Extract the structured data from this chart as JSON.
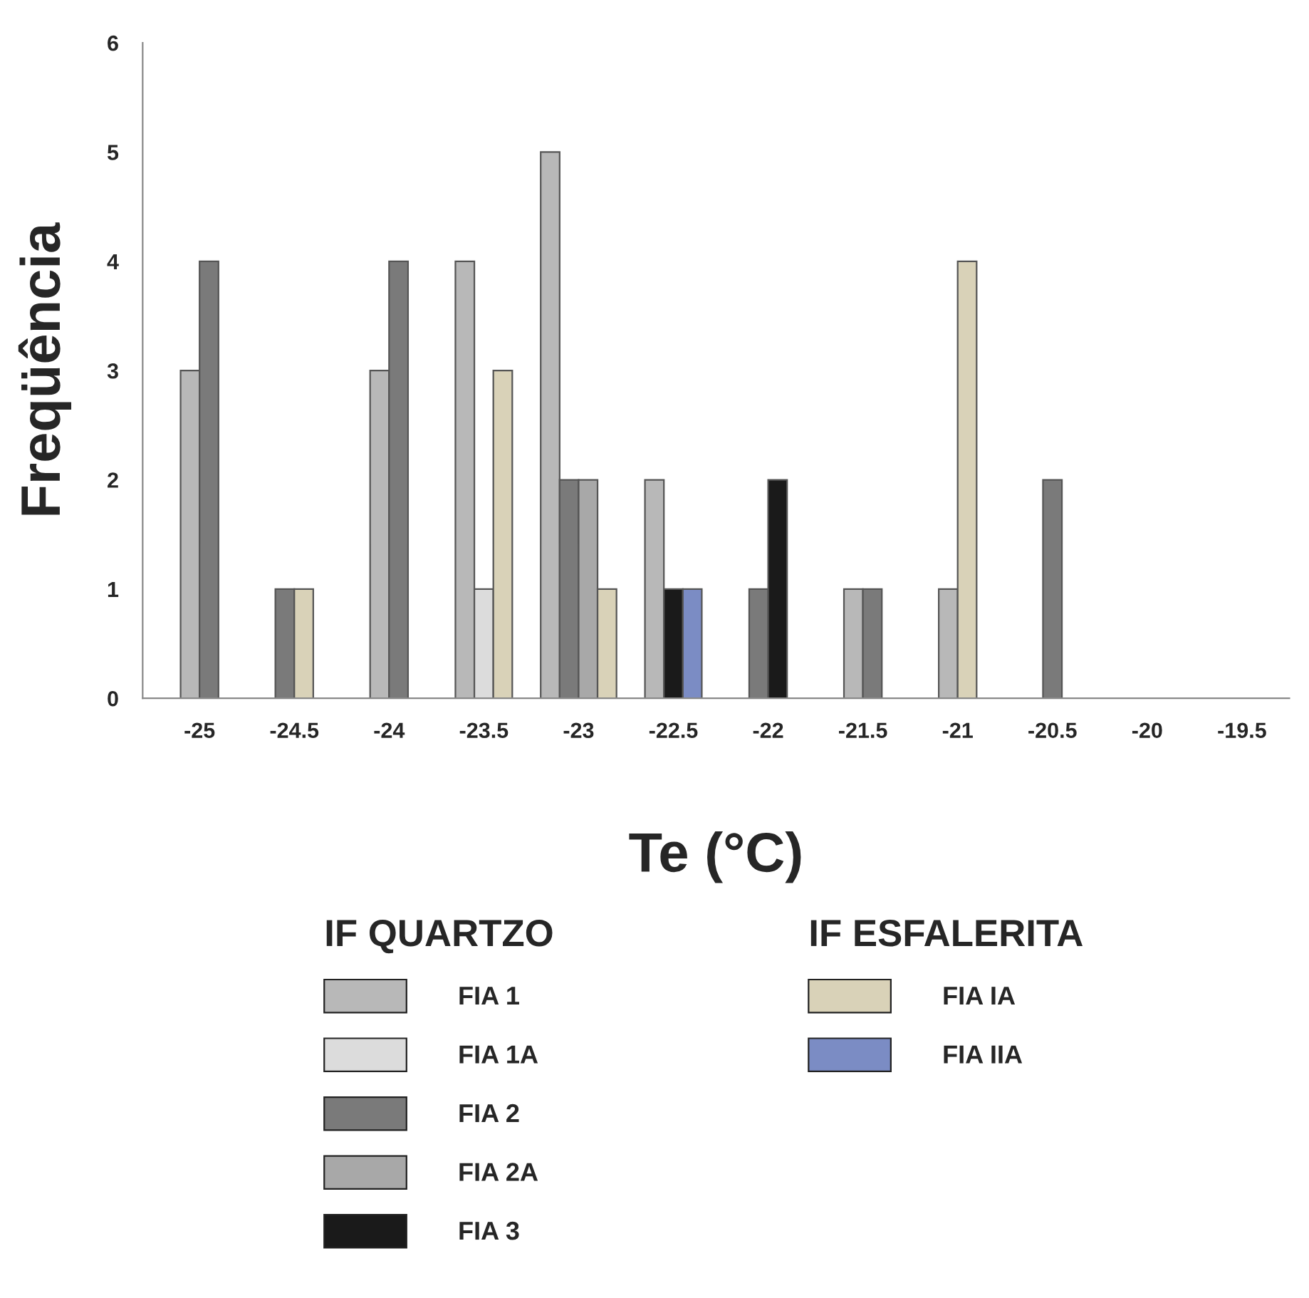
{
  "chart_data": {
    "type": "bar",
    "xlabel": "Te (°C)",
    "ylabel": "Freqüência",
    "categories": [
      "-25",
      "-24.5",
      "-24",
      "-23.5",
      "-23",
      "-22.5",
      "-22",
      "-21.5",
      "-21",
      "-20.5",
      "-20",
      "-19.5"
    ],
    "series": [
      {
        "name": "FIA 1",
        "color": "#b8b8b8",
        "values": [
          3,
          null,
          3,
          4,
          5,
          2,
          null,
          1,
          1,
          null,
          null,
          null
        ]
      },
      {
        "name": "FIA 1A",
        "color": "#dcdcdc",
        "values": [
          null,
          null,
          null,
          1,
          null,
          null,
          null,
          null,
          null,
          null,
          null,
          null
        ]
      },
      {
        "name": "FIA 2",
        "color": "#7a7a7a",
        "values": [
          4,
          1,
          4,
          null,
          2,
          null,
          1,
          1,
          null,
          2,
          null,
          null
        ]
      },
      {
        "name": "FIA 2A",
        "color": "#a8a8a8",
        "values": [
          null,
          null,
          null,
          null,
          2,
          null,
          null,
          null,
          null,
          null,
          null,
          null
        ]
      },
      {
        "name": "FIA 3",
        "color": "#1a1a1a",
        "values": [
          null,
          null,
          null,
          null,
          null,
          1,
          2,
          null,
          null,
          null,
          null,
          null
        ]
      },
      {
        "name": "FIA IA",
        "color": "#d9d2b8",
        "values": [
          null,
          1,
          null,
          3,
          1,
          null,
          null,
          null,
          4,
          null,
          null,
          null
        ]
      },
      {
        "name": "FIA IIA",
        "color": "#7b8cc4",
        "values": [
          null,
          null,
          null,
          null,
          null,
          1,
          null,
          null,
          null,
          null,
          null,
          null
        ]
      }
    ],
    "ylim": [
      0,
      6
    ],
    "yticks": [
      0,
      1,
      2,
      3,
      4,
      5,
      6
    ],
    "grid": false,
    "legend": "bottom",
    "annotations": [
      "IF QUARTZO",
      "IF ESFALERITA"
    ]
  }
}
